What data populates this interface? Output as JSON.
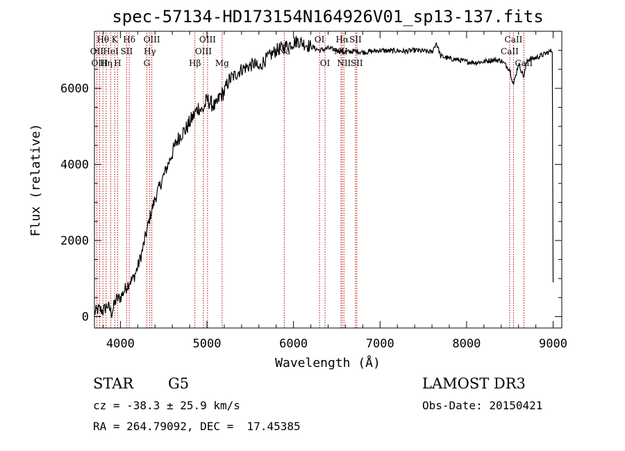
{
  "chart_data": {
    "type": "line",
    "title": "spec-57134-HD173154N164926V01_sp13-137.fits",
    "xlabel": "Wavelength (Å)",
    "ylabel": "Flux (relative)",
    "xlim": [
      3700,
      9100
    ],
    "ylim": [
      -300,
      7500
    ],
    "xticks": [
      4000,
      5000,
      6000,
      7000,
      8000,
      9000
    ],
    "yticks": [
      0,
      2000,
      4000,
      6000
    ],
    "grid": false,
    "series": [
      {
        "x": [
          3700,
          3750,
          3800,
          3850,
          3900,
          3950,
          4000,
          4050,
          4100,
          4150,
          4200,
          4250,
          4300,
          4350,
          4400,
          4450,
          4500,
          4550,
          4600,
          4650,
          4700,
          4750,
          4800,
          4850,
          4900,
          4950,
          5000,
          5050,
          5100,
          5150,
          5200,
          5250,
          5300,
          5350,
          5400,
          5450,
          5500,
          5550,
          5600,
          5650,
          5700,
          5750,
          5800,
          5850,
          5900,
          5950,
          6000,
          6050,
          6100,
          6150,
          6200,
          6250,
          6300,
          6350,
          6400,
          6450,
          6500,
          6550,
          6600,
          6650,
          6700,
          6750,
          6800,
          6850,
          6900,
          6950,
          7000,
          7100,
          7200,
          7300,
          7400,
          7500,
          7600,
          7650,
          7700,
          7800,
          7900,
          8000,
          8100,
          8200,
          8300,
          8400,
          8498,
          8542,
          8600,
          8662,
          8700,
          8800,
          8900,
          8990,
          9000
        ],
        "y": [
          100,
          200,
          150,
          300,
          100,
          450,
          500,
          700,
          900,
          1000,
          1300,
          1700,
          2200,
          2700,
          3100,
          3400,
          3700,
          4000,
          4300,
          4600,
          4800,
          4900,
          5100,
          5300,
          5500,
          5400,
          5700,
          5600,
          5500,
          5800,
          5900,
          6200,
          6300,
          6400,
          6500,
          6550,
          6600,
          6650,
          6500,
          6700,
          6800,
          6900,
          7000,
          7050,
          7100,
          7150,
          7200,
          7250,
          7200,
          7150,
          7100,
          7050,
          7000,
          7020,
          7050,
          7030,
          7000,
          6980,
          6950,
          6960,
          6980,
          6970,
          6950,
          6960,
          6970,
          6980,
          7000,
          6980,
          6990,
          6970,
          7000,
          6980,
          6950,
          7200,
          6850,
          6780,
          6750,
          6700,
          6680,
          6700,
          6750,
          6730,
          6500,
          6100,
          6650,
          6300,
          6750,
          6800,
          6900,
          7000,
          900
        ]
      }
    ],
    "spectral_lines": [
      {
        "label": "Hθ",
        "wave": 3798,
        "row": 0
      },
      {
        "label": "OII",
        "wave": 3727,
        "row": 1
      },
      {
        "label": "OIII",
        "wave": 3760,
        "row": 2
      },
      {
        "label": "K",
        "wave": 3934,
        "row": 0
      },
      {
        "label": "HeI",
        "wave": 3889,
        "row": 1
      },
      {
        "label": "Hη",
        "wave": 3835,
        "row": 2
      },
      {
        "label": "SII",
        "wave": 4072,
        "row": 1
      },
      {
        "label": "H",
        "wave": 3968,
        "row": 2
      },
      {
        "label": "Hδ",
        "wave": 4102,
        "row": 0
      },
      {
        "label": "OIII",
        "wave": 4363,
        "row": 0
      },
      {
        "label": "Hγ",
        "wave": 4340,
        "row": 1
      },
      {
        "label": "G",
        "wave": 4305,
        "row": 2
      },
      {
        "label": "OIII",
        "wave": 5007,
        "row": 0
      },
      {
        "label": "OIII",
        "wave": 4959,
        "row": 1
      },
      {
        "label": "Hβ",
        "wave": 4861,
        "row": 2
      },
      {
        "label": "Mg",
        "wave": 5175,
        "row": 2
      },
      {
        "label": "Na",
        "wave": 5893,
        "row": 1
      },
      {
        "label": "OI",
        "wave": 6300,
        "row": 0
      },
      {
        "label": "OI",
        "wave": 6364,
        "row": 2
      },
      {
        "label": "Hα",
        "wave": 6563,
        "row": 0
      },
      {
        "label": "SII",
        "wave": 6716,
        "row": 0
      },
      {
        "label": "NII",
        "wave": 6548,
        "row": 1
      },
      {
        "label": "NII",
        "wave": 6583,
        "row": 2
      },
      {
        "label": "SII",
        "wave": 6731,
        "row": 2
      },
      {
        "label": "CaII",
        "wave": 8542,
        "row": 0
      },
      {
        "label": "CaII",
        "wave": 8498,
        "row": 1
      },
      {
        "label": "CaII",
        "wave": 8662,
        "row": 2
      }
    ]
  },
  "info": {
    "object_class": "STAR",
    "subclass": "G5",
    "survey": "LAMOST DR3",
    "redshift": "cz = -38.3 ± 25.9 km/s",
    "obs_date": "Obs-Date: 20150421",
    "coords": "RA = 264.79092, DEC =  17.45385"
  }
}
